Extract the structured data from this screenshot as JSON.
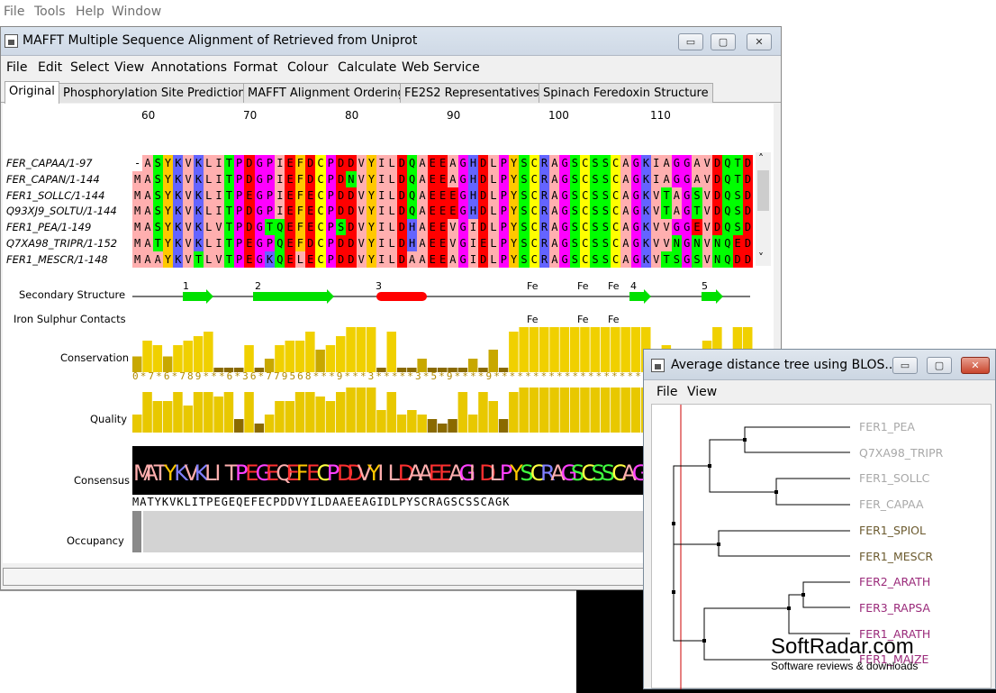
{
  "top_menu": [
    "File",
    "Tools",
    "Help",
    "Window"
  ],
  "main_window": {
    "title": "MAFFT Multiple Sequence Alignment of Retrieved from Uniprot",
    "controls": [
      "▭",
      "▢",
      "✕"
    ],
    "menu": [
      "File",
      "Edit",
      "Select",
      "View",
      "Annotations",
      "Format",
      "Colour",
      "Calculate",
      "Web Service"
    ],
    "tabs": [
      "Original",
      "Phosphorylation Site Predictions",
      "MAFFT Alignment Ordering",
      "FE2S2 Representatives",
      "Spinach Feredoxin Structure"
    ],
    "ruler": [
      "60",
      "70",
      "80",
      "90",
      "100",
      "110"
    ],
    "sequences": [
      {
        "name": "FER_CAPAA/1-97",
        "seq": "-ASYKVKLITPDGPIEFDCPDDVYILDQAEEAGHDLPYSCRAGSCSSCAGKIAGGAVDQTD"
      },
      {
        "name": "FER_CAPAN/1-144",
        "seq": "MASYKVKLITPDGPIEFDCPDNVYILDQAEEAGHDLPYSCRAGSCSSCAGKIAGGAVDQTD"
      },
      {
        "name": "FER1_SOLLC/1-144",
        "seq": "MASYKVKLITPEGPIEFECPDDVYILDQAEEEGHDLPYSCRAGSCSSCAGKVTAGSVDQSD"
      },
      {
        "name": "Q93XJ9_SOLTU/1-144",
        "seq": "MASYKVKLITPDGPIEFECPDDVYILDQAEEEGHDLPYSCRAGSCSSCAGKVTAGTVDQSD"
      },
      {
        "name": "FER1_PEA/1-149",
        "seq": "MASYKVKLVTPDGTQEFECPSDVYILDHAEEVGIDLPYSCRAGSCSSCAGKVVGGEVDQSD"
      },
      {
        "name": "Q7XA98_TRIPR/1-152",
        "seq": "MATYKVKLITPEGPQEFDCPDDVYILDHAEEVGIELPYSCRAGSCSSCAGKVVNGNVNQED"
      },
      {
        "name": "FER1_MESCR/1-148",
        "seq": "MAAYKVTLVTPEGKQELECPDDVYILDAAEEAGIDLPYSCRAGSCSSCAGKVTSGSVNQDD"
      }
    ],
    "annotations": {
      "secondary_structure": "Secondary Structure",
      "ss_markers": [
        "1",
        "2",
        "3",
        "4",
        "5"
      ],
      "fe_labels": [
        "Fe",
        "Fe",
        "Fe"
      ],
      "iron_sulphur": "Iron Sulphur Contacts",
      "conservation": "Conservation",
      "conservation_string": "0*7*6*789***6*36*779568***9***3*****3*5*9****9*********************",
      "quality": "Quality",
      "consensus": "Consensus",
      "consensus_string": "MATYKVKLITPEGEQEFECPDDVYILDAAEEAGIDLPYSCRAGSCSSCAGK",
      "occupancy": "Occupancy"
    },
    "scroll_left": "‹",
    "scroll_up": "˄",
    "scroll_down": "˅"
  },
  "tree_window": {
    "title": "Average distance tree using BLOS...",
    "controls": [
      "▭",
      "▢",
      "✕"
    ],
    "menu": [
      "File",
      "View"
    ],
    "leaves": [
      {
        "name": "FER1_PEA",
        "color": "#a8a8a8"
      },
      {
        "name": "Q7XA98_TRIPR",
        "color": "#a8a8a8"
      },
      {
        "name": "FER1_SOLLC",
        "color": "#a8a8a8"
      },
      {
        "name": "FER_CAPAA",
        "color": "#a8a8a8"
      },
      {
        "name": "FER1_SPIOL",
        "color": "#6b5a2e"
      },
      {
        "name": "FER1_MESCR",
        "color": "#6b5a2e"
      },
      {
        "name": "FER2_ARATH",
        "color": "#9a2a7a"
      },
      {
        "name": "FER3_RAPSA",
        "color": "#9a2a7a"
      },
      {
        "name": "FER1_ARATH",
        "color": "#9a2a7a"
      },
      {
        "name": "FER1_MAIZE",
        "color": "#9a2a7a"
      }
    ]
  },
  "watermark": {
    "big": "SoftRadar.com",
    "small": "Software reviews & downloads"
  },
  "colors": {
    "conservation_bar": "#e8c800",
    "conservation_dark": "#8a6a00",
    "helix": "#ff0000",
    "strand": "#00e000"
  }
}
